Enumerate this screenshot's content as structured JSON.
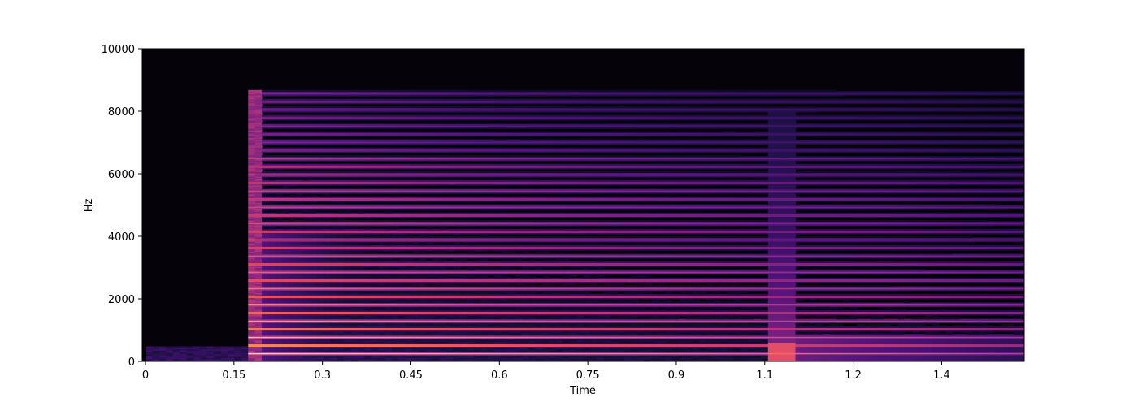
{
  "chart_data": {
    "type": "heatmap",
    "subtype": "spectrogram",
    "colormap": "magma",
    "title": "",
    "xlabel": "Time",
    "ylabel": "Hz",
    "xlim": [
      0,
      1.49
    ],
    "ylim": [
      0,
      10000
    ],
    "x_ticks": [
      {
        "value": 0,
        "label": "0"
      },
      {
        "value": 0.15,
        "label": "0.15"
      },
      {
        "value": 0.3,
        "label": "0.3"
      },
      {
        "value": 0.45,
        "label": "0.45"
      },
      {
        "value": 0.6,
        "label": "0.6"
      },
      {
        "value": 0.75,
        "label": "0.75"
      },
      {
        "value": 0.9,
        "label": "0.9"
      },
      {
        "value": 1.05,
        "label": "1.1"
      },
      {
        "value": 1.2,
        "label": "1.2"
      },
      {
        "value": 1.35,
        "label": "1.4"
      }
    ],
    "y_ticks": [
      {
        "value": 0,
        "label": "0"
      },
      {
        "value": 2000,
        "label": "2000"
      },
      {
        "value": 4000,
        "label": "4000"
      },
      {
        "value": 6000,
        "label": "6000"
      },
      {
        "value": 8000,
        "label": "8000"
      },
      {
        "value": 10000,
        "label": "10000"
      }
    ],
    "onsets_s": [
      0.175,
      1.055
    ],
    "note_end_s": 1.49,
    "fundamental_hz": 260,
    "harmonic_max_hz": 8800,
    "grid": false,
    "legend": "none"
  }
}
